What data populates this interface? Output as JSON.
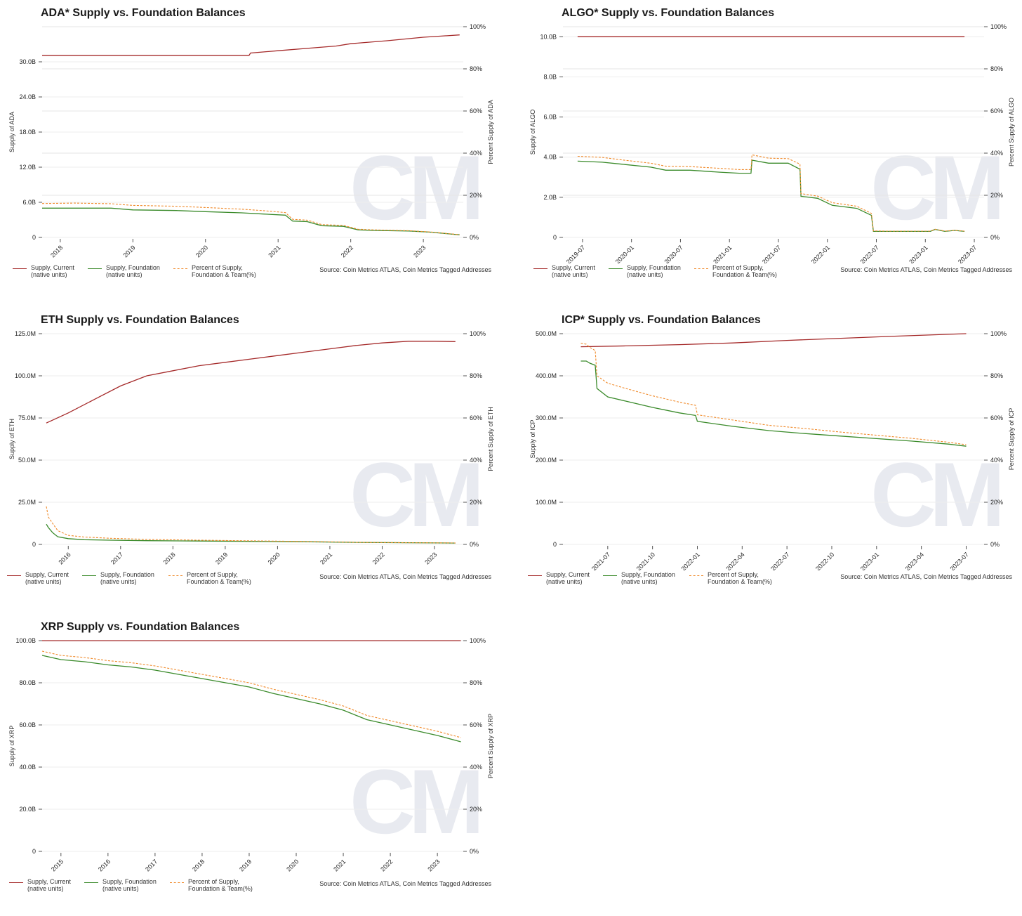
{
  "colors": {
    "supply_current": "#a52a2a",
    "supply_foundation": "#3a8a2a",
    "percent_team": "#f08a2a",
    "grid": "#e6e6e6"
  },
  "legend": {
    "supply_current": "Supply, Current\n(native units)",
    "supply_foundation": "Supply, Foundation\n(native units)",
    "percent_team": "Percent of Supply,\nFoundation & Team(%)"
  },
  "source": "Source: Coin Metrics ATLAS, Coin Metrics Tagged Addresses",
  "watermark": "CM",
  "chart_data": [
    {
      "id": "ada",
      "type": "line",
      "title": "ADA* Supply vs. Foundation Balances",
      "ylabel": "Supply of ADA",
      "y2label": "Percent Supply of ADA",
      "xlim": [
        2017.75,
        2023.55
      ],
      "ylim": [
        0,
        36
      ],
      "y2lim": [
        0,
        100
      ],
      "yticks": [
        0,
        6,
        12,
        18,
        24,
        30
      ],
      "ytick_labels": [
        "0",
        "6.0B",
        "12.0B",
        "18.0B",
        "24.0B",
        "30.0B"
      ],
      "y2ticks": [
        0,
        20,
        40,
        60,
        80,
        100
      ],
      "y2tick_labels": [
        "0%",
        "20%",
        "40%",
        "60%",
        "80%",
        "100%"
      ],
      "xticks": [
        2018,
        2019,
        2020,
        2021,
        2022,
        2023
      ],
      "xtick_labels": [
        "2018",
        "2019",
        "2020",
        "2021",
        "2022",
        "2023"
      ],
      "series": [
        {
          "key": "supply_current",
          "axis": "left",
          "x": [
            2017.75,
            2018.5,
            2019.5,
            2020.4,
            2020.6,
            2020.62,
            2021.0,
            2021.5,
            2021.8,
            2022.0,
            2022.5,
            2023.0,
            2023.5
          ],
          "y": [
            31.1,
            31.1,
            31.1,
            31.1,
            31.1,
            31.5,
            31.9,
            32.4,
            32.7,
            33.1,
            33.6,
            34.2,
            34.6
          ]
        },
        {
          "key": "supply_foundation",
          "axis": "left",
          "x": [
            2017.75,
            2018.2,
            2018.7,
            2019.0,
            2019.6,
            2020.0,
            2020.5,
            2020.8,
            2021.1,
            2021.2,
            2021.4,
            2021.6,
            2021.9,
            2022.1,
            2022.3,
            2022.8,
            2023.1,
            2023.5
          ],
          "y": [
            5.0,
            5.0,
            5.0,
            4.7,
            4.6,
            4.4,
            4.2,
            4.0,
            3.8,
            2.8,
            2.7,
            2.0,
            1.9,
            1.3,
            1.2,
            1.1,
            0.9,
            0.45
          ]
        },
        {
          "key": "percent_team",
          "axis": "right",
          "x": [
            2017.75,
            2018.2,
            2018.7,
            2019.0,
            2019.6,
            2020.0,
            2020.5,
            2020.8,
            2021.1,
            2021.2,
            2021.4,
            2021.6,
            2021.9,
            2022.1,
            2022.3,
            2022.8,
            2023.1,
            2023.5
          ],
          "y": [
            16.1,
            16.3,
            16.0,
            15.2,
            14.8,
            14.2,
            13.4,
            12.7,
            11.8,
            8.6,
            8.2,
            6.1,
            5.7,
            3.9,
            3.6,
            3.2,
            2.6,
            1.3
          ]
        }
      ]
    },
    {
      "id": "algo",
      "type": "line",
      "title": "ALGO* Supply vs. Foundation Balances",
      "ylabel": "Supply of ALGO",
      "y2label": "Percent Supply of ALGO",
      "xlim": [
        2019.3,
        2023.6
      ],
      "ylim": [
        0,
        10.5
      ],
      "y2lim": [
        0,
        100
      ],
      "yticks": [
        0,
        2,
        4,
        6,
        8,
        10
      ],
      "ytick_labels": [
        "0",
        "2.0B",
        "4.0B",
        "6.0B",
        "8.0B",
        "10.0B"
      ],
      "y2ticks": [
        0,
        20,
        40,
        60,
        80,
        100
      ],
      "y2tick_labels": [
        "0%",
        "20%",
        "40%",
        "60%",
        "80%",
        "100%"
      ],
      "xticks": [
        2019.5,
        2020.0,
        2020.5,
        2021.0,
        2021.5,
        2022.0,
        2022.5,
        2023.0,
        2023.5
      ],
      "xtick_labels": [
        "2019-07",
        "2020-01",
        "2020-07",
        "2021-01",
        "2021-07",
        "2022-01",
        "2022-07",
        "2023-01",
        "2023-07"
      ],
      "series": [
        {
          "key": "supply_current",
          "axis": "left",
          "x": [
            2019.45,
            2023.4
          ],
          "y": [
            10.0,
            10.0
          ]
        },
        {
          "key": "supply_foundation",
          "axis": "left",
          "x": [
            2019.45,
            2019.7,
            2019.9,
            2020.2,
            2020.35,
            2020.6,
            2020.9,
            2021.1,
            2021.22,
            2021.23,
            2021.4,
            2021.6,
            2021.72,
            2021.73,
            2021.9,
            2022.05,
            2022.3,
            2022.45,
            2022.47,
            2022.6,
            2022.9,
            2023.05,
            2023.1,
            2023.2,
            2023.3,
            2023.4
          ],
          "y": [
            3.8,
            3.75,
            3.65,
            3.5,
            3.35,
            3.35,
            3.25,
            3.2,
            3.2,
            3.85,
            3.7,
            3.7,
            3.4,
            2.05,
            1.95,
            1.6,
            1.45,
            1.1,
            0.3,
            0.3,
            0.3,
            0.3,
            0.4,
            0.3,
            0.35,
            0.3
          ]
        },
        {
          "key": "percent_team",
          "axis": "right",
          "x": [
            2019.45,
            2019.7,
            2019.9,
            2020.2,
            2020.35,
            2020.6,
            2020.9,
            2021.1,
            2021.22,
            2021.23,
            2021.4,
            2021.6,
            2021.72,
            2021.73,
            2021.9,
            2022.05,
            2022.3,
            2022.45,
            2022.47,
            2022.6,
            2022.9,
            2023.05,
            2023.1,
            2023.2,
            2023.3,
            2023.4
          ],
          "y": [
            38.5,
            38.0,
            36.8,
            35.2,
            33.8,
            33.6,
            32.8,
            32.2,
            32.2,
            39.2,
            37.6,
            37.4,
            34.8,
            20.8,
            19.6,
            16.5,
            14.8,
            11.4,
            3.1,
            3.0,
            3.0,
            3.0,
            3.9,
            3.0,
            3.4,
            3.0
          ]
        }
      ]
    },
    {
      "id": "eth",
      "type": "line",
      "title": "ETH Supply vs. Foundation Balances",
      "ylabel": "Supply of ETH",
      "y2label": "Percent Supply of ETH",
      "xlim": [
        2015.5,
        2023.55
      ],
      "ylim": [
        0,
        125
      ],
      "y2lim": [
        0,
        100
      ],
      "yticks": [
        0,
        25,
        50,
        75,
        100,
        125
      ],
      "ytick_labels": [
        "0",
        "25.0M",
        "50.0M",
        "75.0M",
        "100.0M",
        "125.0M"
      ],
      "y2ticks": [
        0,
        20,
        40,
        60,
        80,
        100
      ],
      "y2tick_labels": [
        "0%",
        "20%",
        "40%",
        "60%",
        "80%",
        "100%"
      ],
      "xticks": [
        2016,
        2017,
        2018,
        2019,
        2020,
        2021,
        2022,
        2023
      ],
      "xtick_labels": [
        "2016",
        "2017",
        "2018",
        "2019",
        "2020",
        "2021",
        "2022",
        "2023"
      ],
      "series": [
        {
          "key": "supply_current",
          "axis": "left",
          "x": [
            2015.58,
            2016.0,
            2016.5,
            2017.0,
            2017.5,
            2018.0,
            2018.5,
            2019.0,
            2019.5,
            2020.0,
            2020.5,
            2021.0,
            2021.5,
            2022.0,
            2022.5,
            2022.7,
            2023.0,
            2023.4
          ],
          "y": [
            72,
            78,
            86,
            94,
            100,
            103,
            106,
            108,
            110,
            112,
            114,
            116,
            118,
            119.5,
            120.5,
            120.5,
            120.5,
            120.3
          ]
        },
        {
          "key": "supply_foundation",
          "axis": "left",
          "x": [
            2015.58,
            2015.62,
            2015.7,
            2015.8,
            2016.0,
            2016.3,
            2016.8,
            2017.5,
            2018.5,
            2019.5,
            2020.5,
            2021.5,
            2022.5,
            2023.4
          ],
          "y": [
            12,
            10,
            7,
            4.5,
            3.4,
            2.8,
            2.5,
            2.2,
            2.0,
            1.8,
            1.6,
            1.2,
            1.0,
            0.8
          ]
        },
        {
          "key": "percent_team",
          "axis": "right",
          "x": [
            2015.58,
            2015.62,
            2015.7,
            2015.8,
            2016.0,
            2016.3,
            2016.8,
            2017.5,
            2018.5,
            2019.5,
            2020.5,
            2021.5,
            2022.5,
            2023.4
          ],
          "y": [
            18,
            13,
            10,
            6.5,
            4.3,
            3.5,
            2.9,
            2.4,
            2.0,
            1.7,
            1.4,
            1.0,
            0.8,
            0.7
          ]
        }
      ]
    },
    {
      "id": "icp",
      "type": "line",
      "title": "ICP* Supply vs. Foundation Balances",
      "ylabel": "Supply of ICP",
      "y2label": "Percent Supply of ICP",
      "xlim": [
        2021.25,
        2023.6
      ],
      "ylim": [
        0,
        500
      ],
      "y2lim": [
        0,
        100
      ],
      "yticks": [
        0,
        100,
        200,
        300,
        400,
        500
      ],
      "ytick_labels": [
        "0",
        "100.0M",
        "200.0M",
        "300.0M",
        "400.0M",
        "500.0M"
      ],
      "y2ticks": [
        0,
        20,
        40,
        60,
        80,
        100
      ],
      "y2tick_labels": [
        "0%",
        "20%",
        "40%",
        "60%",
        "80%",
        "100%"
      ],
      "xticks": [
        2021.5,
        2021.75,
        2022.0,
        2022.25,
        2022.5,
        2022.75,
        2023.0,
        2023.25,
        2023.5
      ],
      "xtick_labels": [
        "2021-07",
        "2021-10",
        "2022-01",
        "2022-04",
        "2022-07",
        "2022-10",
        "2023-01",
        "2023-04",
        "2023-07"
      ],
      "series": [
        {
          "key": "supply_current",
          "axis": "left",
          "x": [
            2021.35,
            2021.6,
            2021.9,
            2022.2,
            2022.5,
            2022.8,
            2023.1,
            2023.5
          ],
          "y": [
            469,
            471,
            474,
            478,
            484,
            489,
            494,
            500
          ]
        },
        {
          "key": "supply_foundation",
          "axis": "left",
          "x": [
            2021.35,
            2021.38,
            2021.4,
            2021.43,
            2021.44,
            2021.5,
            2021.6,
            2021.75,
            2021.9,
            2021.99,
            2022.0,
            2022.2,
            2022.4,
            2022.6,
            2022.8,
            2023.0,
            2023.2,
            2023.4,
            2023.5
          ],
          "y": [
            435,
            435,
            430,
            425,
            370,
            350,
            340,
            325,
            312,
            306,
            292,
            280,
            270,
            263,
            257,
            251,
            245,
            238,
            233
          ]
        },
        {
          "key": "percent_team",
          "axis": "right",
          "x": [
            2021.35,
            2021.38,
            2021.4,
            2021.43,
            2021.44,
            2021.5,
            2021.6,
            2021.75,
            2021.9,
            2021.99,
            2022.0,
            2022.2,
            2022.4,
            2022.6,
            2022.8,
            2023.0,
            2023.2,
            2023.4,
            2023.5
          ],
          "y": [
            95.5,
            95,
            93.5,
            92,
            80,
            76.5,
            74,
            70.5,
            67.5,
            66,
            61.5,
            59,
            56.5,
            55,
            53.3,
            51.8,
            50.3,
            48.5,
            47.3
          ]
        }
      ]
    },
    {
      "id": "xrp",
      "type": "line",
      "title": "XRP Supply vs. Foundation Balances",
      "ylabel": "Supply of XRP",
      "y2label": "Percent Supply of XRP",
      "xlim": [
        2014.6,
        2023.55
      ],
      "ylim": [
        0,
        100
      ],
      "y2lim": [
        0,
        100
      ],
      "yticks": [
        0,
        20,
        40,
        60,
        80,
        100
      ],
      "ytick_labels": [
        "0",
        "20.0B",
        "40.0B",
        "60.0B",
        "80.0B",
        "100.0B"
      ],
      "y2ticks": [
        0,
        20,
        40,
        60,
        80,
        100
      ],
      "y2tick_labels": [
        "0%",
        "20%",
        "40%",
        "60%",
        "80%",
        "100%"
      ],
      "xticks": [
        2015,
        2016,
        2017,
        2018,
        2019,
        2020,
        2021,
        2022,
        2023
      ],
      "xtick_labels": [
        "2015",
        "2016",
        "2017",
        "2018",
        "2019",
        "2020",
        "2021",
        "2022",
        "2023"
      ],
      "series": [
        {
          "key": "supply_current",
          "axis": "left",
          "x": [
            2014.6,
            2023.5
          ],
          "y": [
            99.99,
            99.99
          ]
        },
        {
          "key": "supply_foundation",
          "axis": "left",
          "x": [
            2014.6,
            2015.0,
            2015.5,
            2016.0,
            2016.5,
            2017.0,
            2017.5,
            2018.0,
            2018.5,
            2019.0,
            2019.5,
            2020.0,
            2020.5,
            2021.0,
            2021.5,
            2022.0,
            2022.5,
            2023.0,
            2023.5
          ],
          "y": [
            93,
            91,
            90,
            88.5,
            87.5,
            86,
            84,
            82,
            80,
            78,
            75,
            72.5,
            70,
            67,
            62.5,
            60,
            57.5,
            55,
            52
          ]
        },
        {
          "key": "percent_team",
          "axis": "right",
          "x": [
            2014.6,
            2015.0,
            2015.5,
            2016.0,
            2016.5,
            2017.0,
            2017.5,
            2018.0,
            2018.5,
            2019.0,
            2019.5,
            2020.0,
            2020.5,
            2021.0,
            2021.5,
            2022.0,
            2022.5,
            2023.0,
            2023.5
          ],
          "y": [
            95,
            93,
            92,
            90.5,
            89.5,
            88,
            86,
            84,
            82,
            80,
            77,
            74.5,
            72,
            69,
            64.5,
            62,
            59.5,
            57,
            54
          ]
        }
      ]
    }
  ]
}
